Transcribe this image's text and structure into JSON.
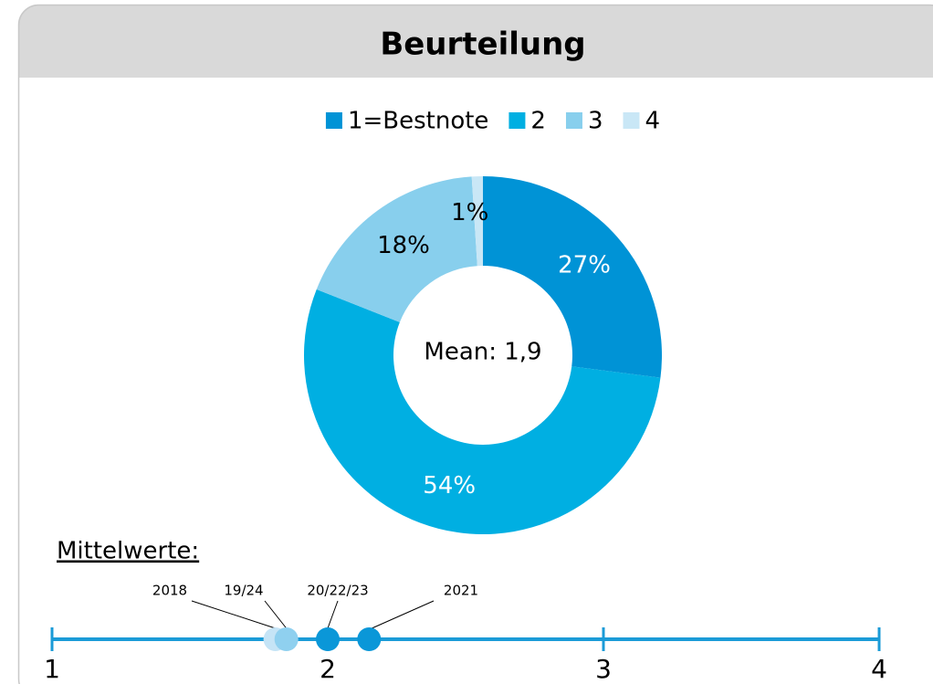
{
  "chart_data": [
    {
      "type": "donut",
      "title": "Beurteilung",
      "categories": [
        "1=Bestnote",
        "2",
        "3",
        "4"
      ],
      "values": [
        27,
        54,
        18,
        1
      ],
      "value_labels": [
        "27%",
        "54%",
        "18%",
        "1%"
      ],
      "colors": [
        "#0093d6",
        "#00afe2",
        "#88cfed",
        "#c9e7f6"
      ],
      "label_colors": [
        "#ffffff",
        "#ffffff",
        "#000000",
        "#000000"
      ],
      "center_label": "Mean: 1,9",
      "legend": "top"
    },
    {
      "type": "dotline",
      "title": "Mittelwerte:",
      "categories": [
        "2018",
        "19/24",
        "20/22/23",
        "2021"
      ],
      "values": [
        1.81,
        1.85,
        2.0,
        2.15
      ],
      "colors": [
        "#c5e4f6",
        "#8fd0ef",
        "#0a97d8",
        "#0a97d8"
      ],
      "xlim": [
        1,
        4
      ],
      "xticks": [
        1,
        2,
        3,
        4
      ],
      "axis_color": "#1b9bd7"
    }
  ]
}
